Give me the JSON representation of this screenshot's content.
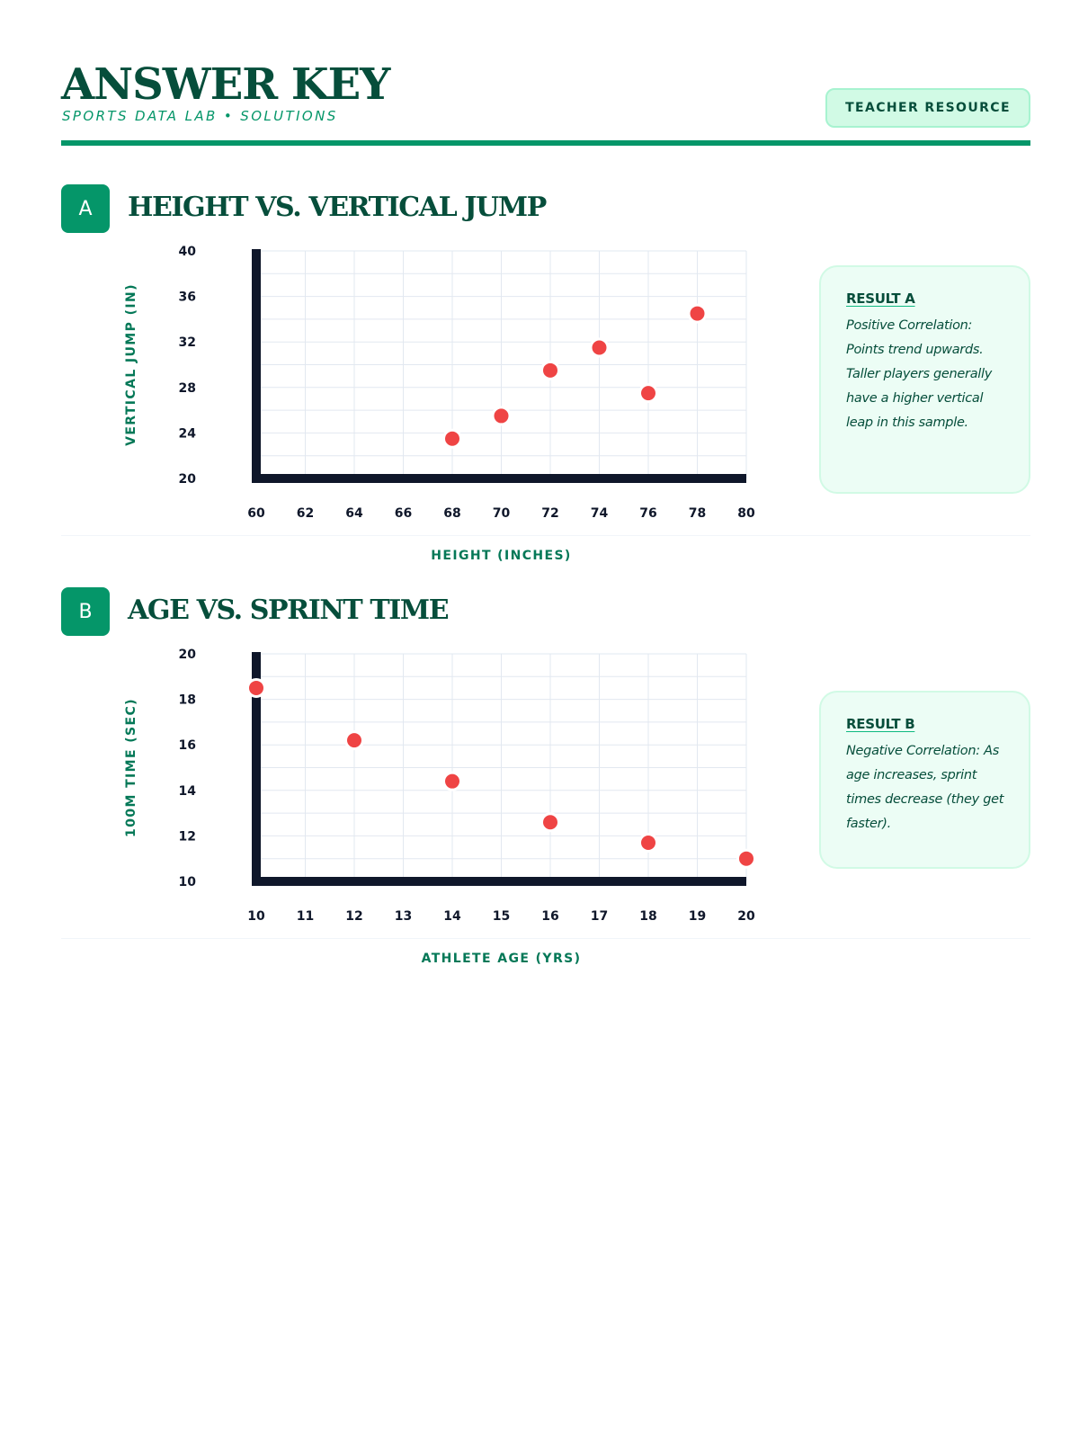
{
  "header": {
    "title": "ANSWER KEY",
    "subtitle": "SPORTS DATA LAB • SOLUTIONS",
    "badge": "TEACHER RESOURCE"
  },
  "colors": {
    "accent": "#059669",
    "heading": "#064e3b",
    "point": "#ef4444",
    "axis": "#0f172a",
    "grid": "#e2e8f0",
    "result_bg": "#ecfdf5"
  },
  "sections": [
    {
      "letter": "A",
      "title": "HEIGHT VS. VERTICAL JUMP",
      "result_title": "RESULT A",
      "result_text": "Positive Correlation: Points trend upwards. Taller players generally have a higher vertical leap in this sample."
    },
    {
      "letter": "B",
      "title": "AGE VS. SPRINT TIME",
      "result_title": "RESULT B",
      "result_text": "Negative Correlation: As age increases, sprint times decrease (they get faster)."
    }
  ],
  "chart_data": [
    {
      "type": "scatter",
      "title": "HEIGHT VS. VERTICAL JUMP",
      "xlabel": "HEIGHT (INCHES)",
      "ylabel": "VERTICAL JUMP (IN)",
      "xlim": [
        60,
        80
      ],
      "ylim": [
        20,
        40
      ],
      "xticks": [
        60,
        62,
        64,
        66,
        68,
        70,
        72,
        74,
        76,
        78,
        80
      ],
      "yticks": [
        20,
        24,
        28,
        32,
        36,
        40
      ],
      "grid": true,
      "points": [
        {
          "x": 68,
          "y": 23.5
        },
        {
          "x": 70,
          "y": 25.5
        },
        {
          "x": 72,
          "y": 29.5
        },
        {
          "x": 74,
          "y": 31.5
        },
        {
          "x": 76,
          "y": 27.5
        },
        {
          "x": 78,
          "y": 34.5
        }
      ]
    },
    {
      "type": "scatter",
      "title": "AGE VS. SPRINT TIME",
      "xlabel": "ATHLETE AGE (YRS)",
      "ylabel": "100M TIME (SEC)",
      "xlim": [
        10,
        20
      ],
      "ylim": [
        10,
        20
      ],
      "xticks": [
        10,
        11,
        12,
        13,
        14,
        15,
        16,
        17,
        18,
        19,
        20
      ],
      "yticks": [
        10,
        12,
        14,
        16,
        18,
        20
      ],
      "grid": true,
      "points": [
        {
          "x": 10,
          "y": 18.5
        },
        {
          "x": 12,
          "y": 16.2
        },
        {
          "x": 14,
          "y": 14.4
        },
        {
          "x": 16,
          "y": 12.6
        },
        {
          "x": 18,
          "y": 11.7
        },
        {
          "x": 20,
          "y": 11.0
        }
      ]
    }
  ]
}
